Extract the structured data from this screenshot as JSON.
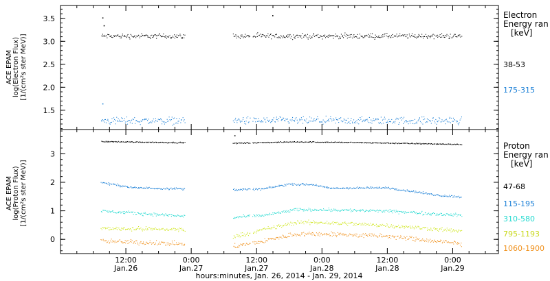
{
  "colors": {
    "black": "#000000",
    "blue": "#1a7fd6",
    "cyan": "#21d9cf",
    "yellow": "#cfe61e",
    "orange": "#f0921e"
  },
  "chart_data": [
    {
      "type": "scatter",
      "panel": "electron",
      "ylabel_lines": [
        "ACE EPAM",
        "log(Electron Flux)",
        "[1/(cm²s ster MeV)]"
      ],
      "ylim": [
        1.08,
        3.78
      ],
      "yticks": [
        1.5,
        2.0,
        2.5,
        3.0,
        3.5
      ],
      "ytick_labels": [
        "1.5",
        "2.0",
        "2.5",
        "3.0",
        "3.5"
      ],
      "legend_title": [
        "Electron",
        "Energy ran",
        "[keV]"
      ],
      "series": [
        {
          "name": "38-53",
          "color": "#000000",
          "level": 3.12,
          "noise": 0.06,
          "segments": [
            [
              0.31,
              0.95
            ],
            [
              1.32,
              1.45
            ],
            [
              1.47,
              3.07
            ]
          ],
          "outliers": [
            [
              0.32,
              3.52
            ],
            [
              0.33,
              3.35
            ],
            [
              1.62,
              3.57
            ]
          ]
        },
        {
          "name": "175-315",
          "color": "#1a7fd6",
          "level": 1.28,
          "noise": 0.09,
          "segments": [
            [
              0.31,
              0.95
            ],
            [
              1.32,
              1.45
            ],
            [
              1.47,
              3.07
            ]
          ],
          "outliers": [
            [
              0.32,
              1.65
            ]
          ]
        }
      ]
    },
    {
      "type": "scatter",
      "panel": "proton",
      "ylabel_lines": [
        "ACE EPAM",
        "log(Proton Flux)",
        "[1/(cm²s ster MeV)]"
      ],
      "ylim": [
        -0.5,
        3.85
      ],
      "yticks": [
        0,
        1,
        2,
        3
      ],
      "ytick_labels": [
        "0",
        "1",
        "2",
        "3"
      ],
      "legend_title": [
        "Proton",
        "Energy ran",
        "[keV]"
      ],
      "series": [
        {
          "name": "47-68",
          "color": "#000000",
          "noise": 0.02,
          "segments": [
            [
              0.31,
              0.95
            ],
            [
              1.32,
              1.45
            ],
            [
              1.47,
              3.07
            ]
          ],
          "profile": [
            [
              0.31,
              3.44
            ],
            [
              0.95,
              3.4
            ],
            [
              1.32,
              3.38
            ],
            [
              1.8,
              3.43
            ],
            [
              2.2,
              3.41
            ],
            [
              3.07,
              3.34
            ]
          ],
          "outliers": [
            [
              1.33,
              3.65
            ]
          ]
        },
        {
          "name": "115-195",
          "color": "#1a7fd6",
          "noise": 0.04,
          "segments": [
            [
              0.31,
              0.95
            ],
            [
              1.32,
              1.45
            ],
            [
              1.47,
              3.07
            ]
          ],
          "profile": [
            [
              0.31,
              2.0
            ],
            [
              0.45,
              1.9
            ],
            [
              0.55,
              1.82
            ],
            [
              0.95,
              1.78
            ],
            [
              1.32,
              1.75
            ],
            [
              1.55,
              1.78
            ],
            [
              1.75,
              1.95
            ],
            [
              1.95,
              1.92
            ],
            [
              2.05,
              1.8
            ],
            [
              2.5,
              1.82
            ],
            [
              2.9,
              1.55
            ],
            [
              3.07,
              1.5
            ]
          ]
        },
        {
          "name": "310-580",
          "color": "#21d9cf",
          "noise": 0.06,
          "segments": [
            [
              0.31,
              0.95
            ],
            [
              1.32,
              1.45
            ],
            [
              1.47,
              3.07
            ]
          ],
          "profile": [
            [
              0.31,
              1.0
            ],
            [
              0.5,
              0.95
            ],
            [
              0.95,
              0.82
            ],
            [
              1.32,
              0.78
            ],
            [
              1.55,
              0.85
            ],
            [
              1.8,
              1.05
            ],
            [
              2.0,
              1.05
            ],
            [
              2.5,
              1.0
            ],
            [
              3.07,
              0.85
            ]
          ]
        },
        {
          "name": "795-1193",
          "color": "#cfe61e",
          "noise": 0.08,
          "segments": [
            [
              0.31,
              0.95
            ],
            [
              1.32,
              1.45
            ],
            [
              1.47,
              3.07
            ]
          ],
          "profile": [
            [
              0.31,
              0.4
            ],
            [
              0.95,
              0.35
            ],
            [
              1.32,
              0.1
            ],
            [
              1.55,
              0.35
            ],
            [
              1.8,
              0.6
            ],
            [
              2.0,
              0.6
            ],
            [
              2.5,
              0.5
            ],
            [
              3.07,
              0.3
            ]
          ]
        },
        {
          "name": "1060-1900",
          "color": "#f0921e",
          "noise": 0.09,
          "segments": [
            [
              0.31,
              0.95
            ],
            [
              1.32,
              1.45
            ],
            [
              1.47,
              3.07
            ]
          ],
          "profile": [
            [
              0.31,
              -0.05
            ],
            [
              0.95,
              -0.15
            ],
            [
              1.32,
              -0.25
            ],
            [
              1.55,
              -0.05
            ],
            [
              1.8,
              0.2
            ],
            [
              2.0,
              0.2
            ],
            [
              2.5,
              0.12
            ],
            [
              3.07,
              -0.15
            ]
          ]
        }
      ]
    }
  ],
  "x_axis": {
    "xlim": [
      0.0,
      3.35
    ],
    "major_ticks": [
      0.5,
      1.0,
      1.5,
      2.0,
      2.5,
      3.0
    ],
    "minor_ticks": [
      0.125,
      0.25,
      0.375,
      0.625,
      0.75,
      0.875,
      1.125,
      1.25,
      1.375,
      1.625,
      1.75,
      1.875,
      2.125,
      2.25,
      2.375,
      2.625,
      2.75,
      2.875,
      3.125,
      3.25
    ],
    "time_labels": [
      "12:00",
      "0:00",
      "12:00",
      "0:00",
      "12:00",
      "0:00"
    ],
    "date_labels": [
      "Jan.26",
      "Jan.27",
      "Jan.27",
      "Jan.28",
      "Jan.28",
      "Jan.29"
    ],
    "title": "hours:minutes, Jan. 26, 2014 - Jan. 29, 2014"
  }
}
